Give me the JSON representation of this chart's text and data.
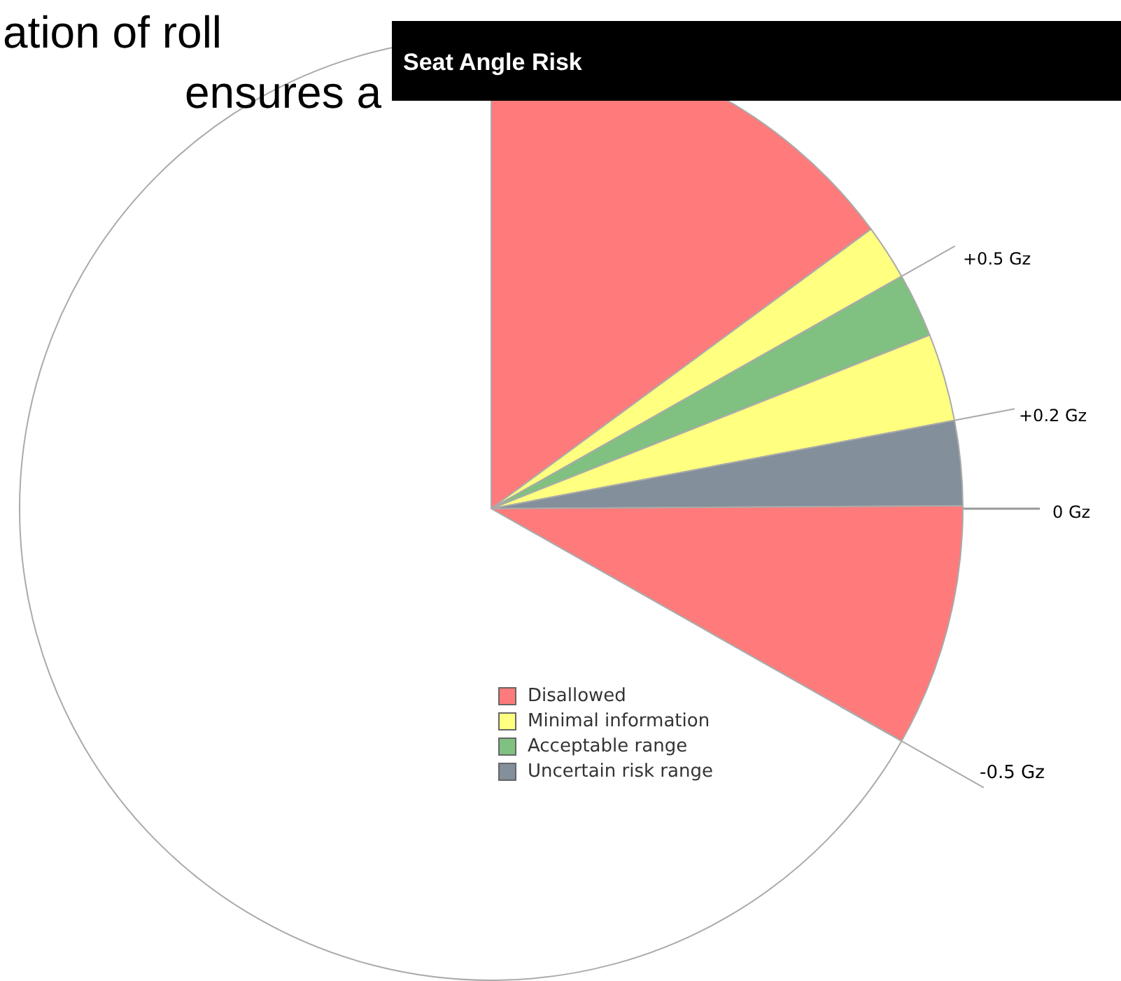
{
  "chart_data": {
    "type": "pie",
    "title": "Seat Angle Risk",
    "categories": [
      "Disallowed",
      "Minimal information",
      "Acceptable range",
      null,
      "Uncertain risk range",
      null,
      null
    ],
    "values": [
      14.9,
      1.9,
      2.2,
      3.0,
      2.9,
      8.3,
      66.8
    ],
    "colors": [
      "#ff7b7b",
      "#ffff80",
      "#80c080",
      "#ffff80",
      "#838f9a",
      "#ff7b7b",
      "#ffffff"
    ],
    "legend": "center",
    "annotations": [
      "+0.5 Gz",
      "+0.2 Gz",
      "0 Gz",
      "-0.5 Gz",
      "ation of roll",
      "ensures a"
    ]
  }
}
